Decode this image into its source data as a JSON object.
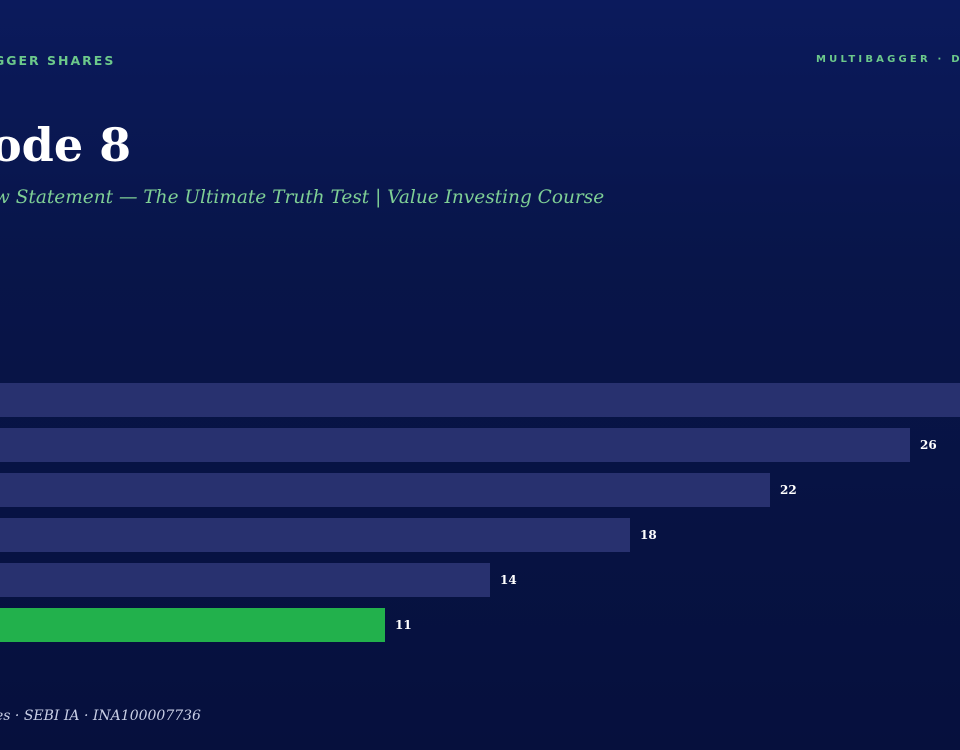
{
  "header": {
    "brand_left": "GGER SHARES",
    "brand_right": "MULTIBAGGER · D"
  },
  "title": "ode 8",
  "subtitle": "w Statement — The Ultimate Truth Test | Value Investing Course",
  "footer": "es · SEBI IA · INA100007736",
  "colors": {
    "bar": "#28316f",
    "highlight": "#22b14c",
    "label": "#ffffff",
    "subtitle": "#7fcf95",
    "brand": "#6cc98b"
  },
  "chart_data": {
    "type": "bar",
    "orientation": "horizontal",
    "values": [
      30,
      26,
      22,
      18,
      14,
      11
    ],
    "labels": [
      "",
      "26",
      "22",
      "18",
      "14",
      "11"
    ],
    "highlight_index": 5,
    "xlim": [
      0,
      30
    ],
    "grid": false
  }
}
